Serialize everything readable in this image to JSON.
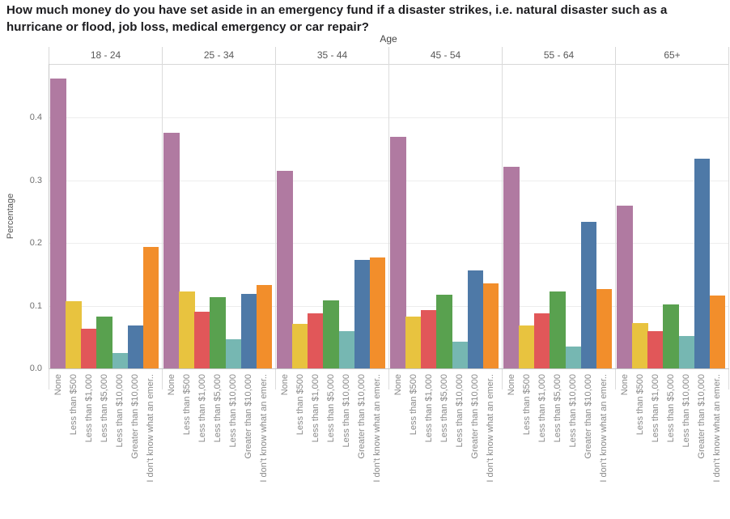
{
  "title": "How much money do you have set aside in an emergency fund if a disaster strikes, i.e. natural disaster such as a hurricane or flood, job loss, medical emergency or car repair?",
  "chart_data": {
    "type": "bar",
    "title": "How much money do you have set aside in an emergency fund if a disaster strikes, i.e. natural disaster such as a hurricane or flood, job loss, medical emergency or car repair?",
    "facet_label": "Age",
    "facets": [
      "18 - 24",
      "25 - 34",
      "35 - 44",
      "45 - 54",
      "55 - 64",
      "65+"
    ],
    "categories": [
      "None",
      "Less than $500",
      "Less than $1,000",
      "Less than $5,000",
      "Less than $10,000",
      "Greater than $10,000",
      "I don't know what an emer.."
    ],
    "category_colors": [
      "#b07aa1",
      "#e8c33f",
      "#e15759",
      "#59a14f",
      "#76b7b2",
      "#4e79a7",
      "#f28e2b"
    ],
    "series": [
      {
        "facet": "18 - 24",
        "values": [
          0.462,
          0.107,
          0.063,
          0.082,
          0.025,
          0.068,
          0.194
        ]
      },
      {
        "facet": "25 - 34",
        "values": [
          0.375,
          0.122,
          0.09,
          0.113,
          0.047,
          0.119,
          0.133
        ]
      },
      {
        "facet": "35 - 44",
        "values": [
          0.315,
          0.071,
          0.088,
          0.108,
          0.059,
          0.173,
          0.177
        ]
      },
      {
        "facet": "45 - 54",
        "values": [
          0.369,
          0.083,
          0.093,
          0.117,
          0.042,
          0.156,
          0.135
        ]
      },
      {
        "facet": "55 - 64",
        "values": [
          0.321,
          0.069,
          0.088,
          0.123,
          0.035,
          0.233,
          0.126
        ]
      },
      {
        "facet": "65+",
        "values": [
          0.26,
          0.072,
          0.06,
          0.102,
          0.052,
          0.334,
          0.116
        ]
      }
    ],
    "ylabel": "Percentage",
    "xlabel": "",
    "yticks": [
      "0.0",
      "0.1",
      "0.2",
      "0.3",
      "0.4"
    ],
    "ylim": [
      0,
      0.487
    ],
    "grid": true,
    "legend": false
  }
}
